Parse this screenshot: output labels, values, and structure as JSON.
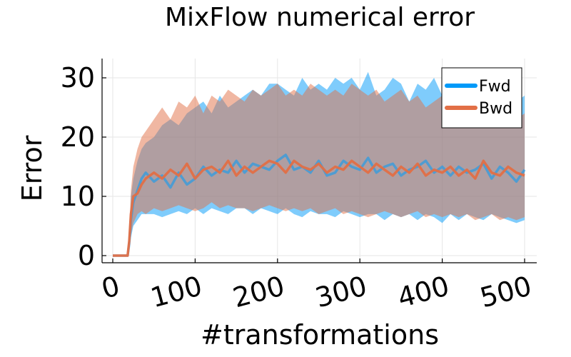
{
  "chart_data": {
    "type": "line",
    "title": "MixFlow numerical error",
    "xlabel": "#transformations",
    "ylabel": "Error",
    "xlim": [
      0,
      510
    ],
    "ylim": [
      0,
      33
    ],
    "xticks": [
      0,
      100,
      200,
      300,
      400,
      500
    ],
    "yticks": [
      0,
      10,
      20,
      30
    ],
    "xtick_labels": [
      "0",
      "100",
      "200",
      "300",
      "400",
      "500"
    ],
    "ytick_labels": [
      "0",
      "10",
      "20",
      "30"
    ],
    "grid": true,
    "legend_position": "top-right",
    "x": [
      0,
      18,
      20,
      22,
      25,
      30,
      35,
      40,
      50,
      60,
      70,
      80,
      90,
      100,
      110,
      120,
      130,
      140,
      150,
      160,
      170,
      180,
      190,
      200,
      210,
      220,
      230,
      240,
      250,
      260,
      270,
      280,
      290,
      300,
      310,
      320,
      330,
      340,
      350,
      360,
      370,
      380,
      390,
      400,
      410,
      420,
      430,
      440,
      450,
      460,
      470,
      480,
      490,
      500
    ],
    "series": [
      {
        "name": "Fwd",
        "color": "#009af9",
        "mean": [
          0,
          0,
          2,
          6,
          9,
          11,
          13,
          14,
          12.5,
          13.5,
          11.5,
          14,
          12,
          13,
          15,
          13.5,
          14.5,
          14,
          16,
          14,
          15.5,
          15,
          14.5,
          16,
          17,
          14.5,
          15,
          14,
          16,
          13.5,
          14,
          16,
          15,
          14.5,
          16.5,
          14,
          15,
          15.5,
          13.5,
          14.5,
          15,
          16,
          14,
          15,
          13.5,
          15,
          14,
          14.5,
          15.5,
          13,
          15,
          14,
          12.5,
          14.5
        ],
        "upper": [
          0,
          0,
          3,
          10,
          13,
          16,
          18,
          19,
          20,
          22,
          23,
          22,
          24,
          25,
          26,
          24,
          27,
          25,
          26,
          27,
          28,
          27,
          29,
          29,
          28,
          27,
          30,
          28,
          29,
          28,
          30,
          29,
          30,
          28,
          31,
          27,
          28,
          30,
          29,
          26,
          29,
          28,
          30,
          27,
          30,
          28,
          27,
          28,
          29,
          27,
          28,
          29,
          26,
          27
        ],
        "lower": [
          0,
          0,
          1,
          3,
          5,
          6,
          7,
          7,
          7,
          6.5,
          7,
          7.5,
          7,
          8,
          7,
          8,
          7.5,
          7,
          8,
          8,
          7,
          8,
          7.5,
          7,
          8,
          7,
          6.5,
          7.5,
          7,
          7,
          6.5,
          7.5,
          7,
          6.5,
          7,
          7,
          6,
          7,
          6.5,
          7,
          6,
          7,
          6.5,
          5.5,
          7,
          6,
          7,
          6.5,
          6,
          7,
          6.5,
          6,
          5.5,
          6
        ]
      },
      {
        "name": "Bwd",
        "color": "#e26f46",
        "mean": [
          0,
          0,
          2.5,
          7,
          10,
          10.5,
          12,
          13,
          14,
          13,
          14.5,
          13.5,
          15.5,
          13,
          14.5,
          15,
          14,
          16,
          13.5,
          15,
          14,
          15,
          16,
          15.5,
          14,
          16,
          15,
          14.5,
          15.5,
          14,
          15,
          14.5,
          16,
          15,
          14,
          15.5,
          14.5,
          13.5,
          15,
          14,
          15.5,
          13.5,
          14.5,
          14,
          15,
          13.5,
          14.5,
          13,
          16,
          14,
          13.5,
          15,
          14,
          13.5
        ],
        "upper": [
          0,
          0,
          4,
          11,
          15,
          18,
          20,
          21,
          23,
          25,
          23,
          26,
          25,
          27,
          24,
          27,
          26,
          28,
          27,
          26,
          28,
          27,
          28,
          29,
          27,
          28,
          27,
          29,
          28,
          27,
          28,
          27,
          29,
          28,
          27,
          28,
          26,
          27,
          28,
          26,
          27,
          25,
          26,
          27,
          26,
          25,
          26,
          24,
          25,
          24,
          25,
          24,
          23,
          24
        ],
        "lower": [
          0,
          0,
          1,
          3.5,
          5.5,
          7,
          7.5,
          7,
          8,
          7.5,
          8,
          8.5,
          8,
          7.5,
          8,
          9,
          8,
          8.5,
          8,
          8,
          7.5,
          8,
          8.5,
          8,
          7.5,
          8,
          7.5,
          8,
          7,
          7.5,
          8,
          7,
          7.5,
          7,
          6.5,
          7,
          7.5,
          7,
          6.5,
          7,
          7.5,
          6.5,
          7,
          6.5,
          7,
          6.5,
          7,
          6,
          6.5,
          7,
          6,
          6.5,
          6,
          6.5
        ]
      }
    ]
  }
}
